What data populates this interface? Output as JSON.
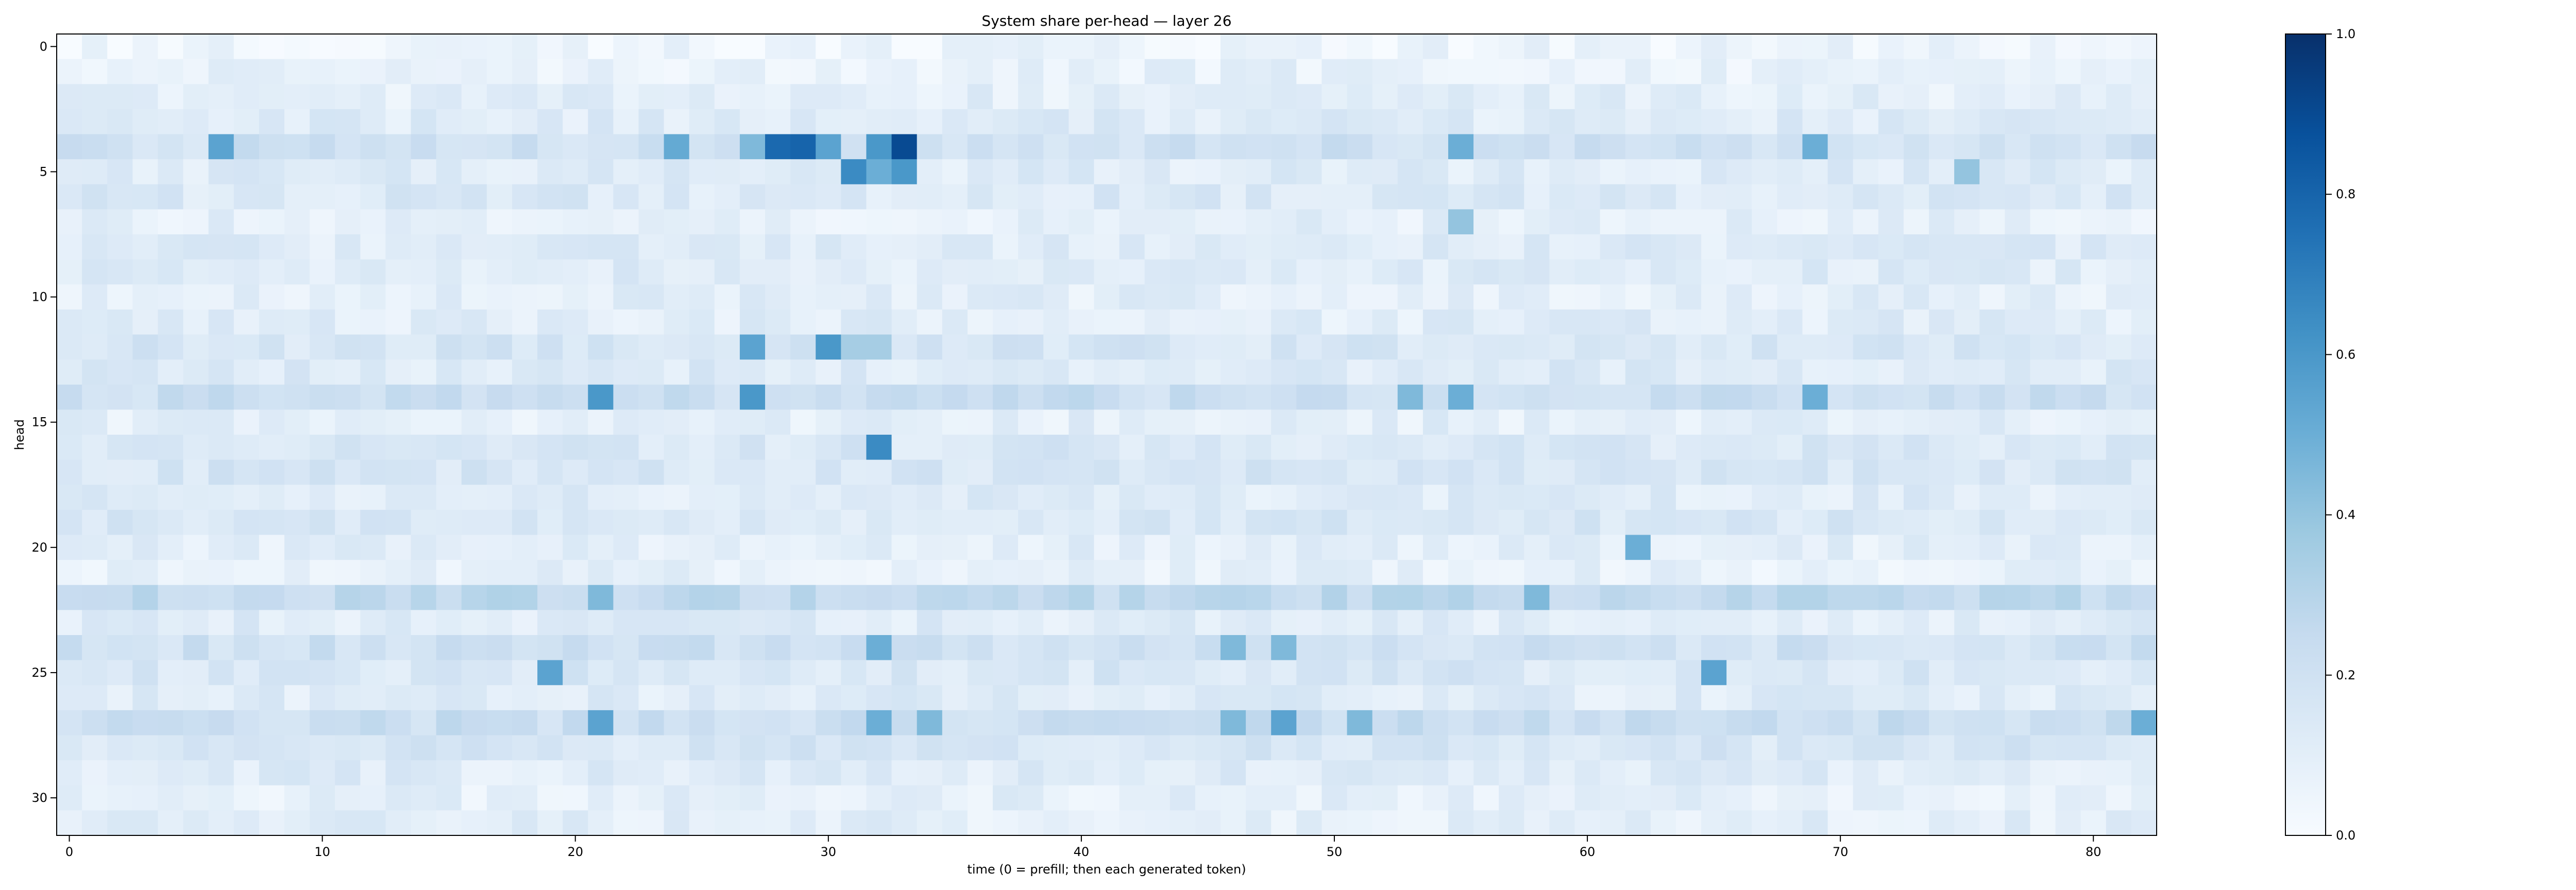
{
  "chart_data": {
    "type": "heatmap",
    "title": "System share per-head — layer 26",
    "xlabel": "time (0 = prefill; then each generated token)",
    "ylabel": "head",
    "x_range": [
      0,
      82
    ],
    "y_range": [
      0,
      31
    ],
    "x_ticks": [
      0,
      10,
      20,
      30,
      40,
      50,
      60,
      70,
      80
    ],
    "y_ticks": [
      0,
      5,
      10,
      15,
      20,
      25,
      30
    ],
    "colorbar": {
      "min": 0.0,
      "max": 1.0,
      "ticks": [
        "0.0",
        "0.2",
        "0.4",
        "0.6",
        "0.8",
        "1.0"
      ],
      "colormap": "Blues"
    },
    "grid": false,
    "row_baseline": [
      0.05,
      0.08,
      0.1,
      0.12,
      0.2,
      0.12,
      0.14,
      0.09,
      0.12,
      0.12,
      0.1,
      0.11,
      0.16,
      0.13,
      0.22,
      0.1,
      0.15,
      0.16,
      0.12,
      0.15,
      0.1,
      0.08,
      0.26,
      0.12,
      0.2,
      0.15,
      0.12,
      0.22,
      0.16,
      0.12,
      0.09,
      0.1
    ],
    "highlights": [
      {
        "head": 4,
        "time": 6,
        "value": 0.55
      },
      {
        "head": 4,
        "time": 24,
        "value": 0.52
      },
      {
        "head": 4,
        "time": 27,
        "value": 0.45
      },
      {
        "head": 4,
        "time": 28,
        "value": 0.78
      },
      {
        "head": 4,
        "time": 29,
        "value": 0.8
      },
      {
        "head": 4,
        "time": 30,
        "value": 0.55
      },
      {
        "head": 4,
        "time": 32,
        "value": 0.6
      },
      {
        "head": 4,
        "time": 33,
        "value": 0.9
      },
      {
        "head": 4,
        "time": 55,
        "value": 0.5
      },
      {
        "head": 4,
        "time": 69,
        "value": 0.5
      },
      {
        "head": 5,
        "time": 31,
        "value": 0.65
      },
      {
        "head": 5,
        "time": 32,
        "value": 0.5
      },
      {
        "head": 5,
        "time": 33,
        "value": 0.6
      },
      {
        "head": 5,
        "time": 75,
        "value": 0.4
      },
      {
        "head": 7,
        "time": 55,
        "value": 0.4
      },
      {
        "head": 12,
        "time": 27,
        "value": 0.55
      },
      {
        "head": 12,
        "time": 30,
        "value": 0.6
      },
      {
        "head": 12,
        "time": 31,
        "value": 0.35
      },
      {
        "head": 12,
        "time": 32,
        "value": 0.35
      },
      {
        "head": 14,
        "time": 21,
        "value": 0.6
      },
      {
        "head": 14,
        "time": 27,
        "value": 0.6
      },
      {
        "head": 14,
        "time": 53,
        "value": 0.45
      },
      {
        "head": 14,
        "time": 55,
        "value": 0.5
      },
      {
        "head": 14,
        "time": 69,
        "value": 0.5
      },
      {
        "head": 16,
        "time": 32,
        "value": 0.65
      },
      {
        "head": 20,
        "time": 62,
        "value": 0.5
      },
      {
        "head": 22,
        "time": 21,
        "value": 0.45
      },
      {
        "head": 22,
        "time": 58,
        "value": 0.45
      },
      {
        "head": 24,
        "time": 32,
        "value": 0.5
      },
      {
        "head": 24,
        "time": 46,
        "value": 0.45
      },
      {
        "head": 24,
        "time": 48,
        "value": 0.45
      },
      {
        "head": 25,
        "time": 19,
        "value": 0.55
      },
      {
        "head": 25,
        "time": 65,
        "value": 0.55
      },
      {
        "head": 27,
        "time": 21,
        "value": 0.55
      },
      {
        "head": 27,
        "time": 32,
        "value": 0.5
      },
      {
        "head": 27,
        "time": 34,
        "value": 0.45
      },
      {
        "head": 27,
        "time": 46,
        "value": 0.45
      },
      {
        "head": 27,
        "time": 48,
        "value": 0.55
      },
      {
        "head": 27,
        "time": 51,
        "value": 0.45
      },
      {
        "head": 27,
        "time": 82,
        "value": 0.5
      }
    ]
  }
}
